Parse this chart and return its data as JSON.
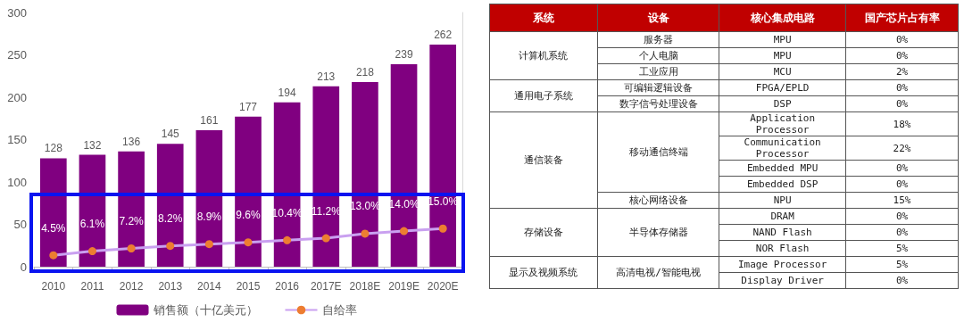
{
  "chart_data": [
    {
      "type": "bar",
      "categories": [
        "2010",
        "2011",
        "2012",
        "2013",
        "2014",
        "2015",
        "2016",
        "2017E",
        "2018E",
        "2019E",
        "2020E"
      ],
      "series": [
        {
          "name": "销售额（十亿美元）",
          "color": "#800080",
          "values": [
            128,
            132,
            136,
            145,
            161,
            177,
            194,
            213,
            218,
            239,
            262
          ],
          "data_labels": true
        },
        {
          "name": "自给率",
          "type": "line",
          "axis": "y2",
          "color": "#c9a0f0",
          "colors": [
            "#ed7d31",
            "#ed7d31",
            "#ed7d31",
            "#ed7d31",
            "#ed7d31",
            "#ed7d31",
            "#ed7d31",
            "#ed7d31",
            "#ed7d31",
            "#ed7d31",
            "#ed7d31"
          ],
          "values": [
            4.5,
            6.1,
            7.2,
            8.2,
            8.9,
            9.6,
            10.4,
            11.2,
            13.0,
            14.0,
            15.0
          ],
          "value_labels": [
            "4.5%",
            "6.1%",
            "7.2%",
            "8.2%",
            "8.9%",
            "9.6%",
            "10.4%",
            "11.2%",
            "13.0%",
            "14.0%",
            "15.0%"
          ]
        }
      ],
      "ylim": [
        0,
        300
      ],
      "yticks": [
        0,
        50,
        100,
        150,
        200,
        250,
        300
      ],
      "y2lim": [
        0,
        100
      ],
      "grid": false,
      "legend": "bottom",
      "marker": "circle",
      "line_style": "solid"
    },
    {
      "type": "other",
      "annotations": [
        "系统",
        "设备",
        "核心集成电路",
        "国产芯片占有率",
        "计算机系统",
        "服务器",
        "MPU",
        "0%",
        "个人电脑",
        "MPU",
        "0%",
        "工业应用",
        "MCU",
        "2%",
        "通用电子系统",
        "可编辑逻辑设备",
        "FPGA/EPLD",
        "0%",
        "数字信号处理设备",
        "DSP",
        "0%",
        "通信装备",
        "移动通信终端",
        "Application Processor",
        "18%",
        "Communication Processor",
        "22%",
        "Embedded MPU",
        "0%",
        "Embedded DSP",
        "0%",
        "核心网络设备",
        "NPU",
        "15%",
        "存储设备",
        "半导体存储器",
        "DRAM",
        "0%",
        "NAND Flash",
        "0%",
        "NOR Flash",
        "5%",
        "显示及视频系统",
        "高清电视/智能电视",
        "Image Processor",
        "5%",
        "Display Driver",
        "0%"
      ]
    }
  ]
}
